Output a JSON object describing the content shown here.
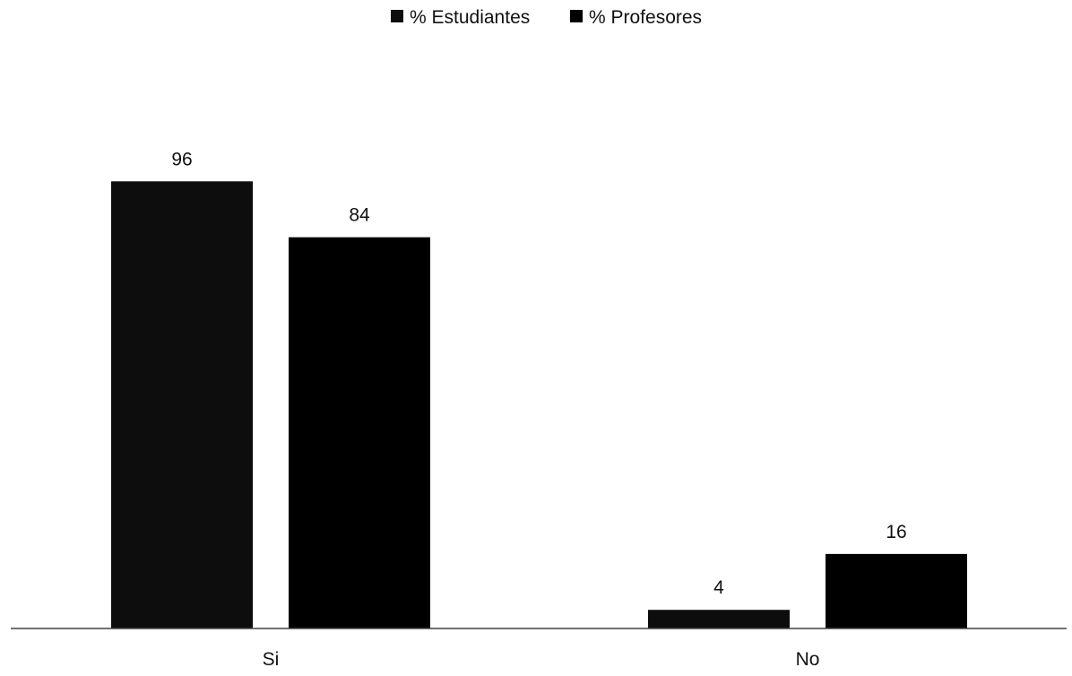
{
  "chart_data": {
    "type": "bar",
    "title": "",
    "xlabel": "",
    "ylabel": "",
    "categories": [
      "Si",
      "No"
    ],
    "series": [
      {
        "name": "% Estudiantes",
        "values": [
          96,
          4
        ],
        "color": "#0d0d0d"
      },
      {
        "name": "% Profesores",
        "values": [
          84,
          16
        ],
        "color": "#000000"
      }
    ],
    "ylim": [
      0,
      100
    ],
    "data_labels": true,
    "grid": false,
    "legend": "top-center"
  }
}
